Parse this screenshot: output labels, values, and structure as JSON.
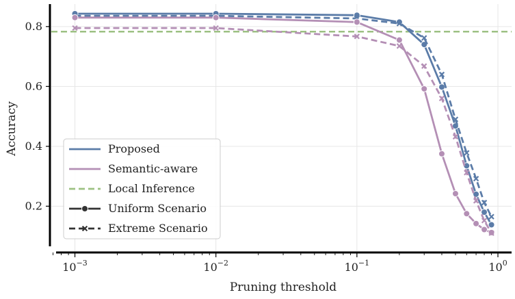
{
  "chart_data": {
    "type": "line",
    "title": "",
    "xlabel": "Pruning threshold",
    "ylabel": "Accuracy",
    "xscale": "log",
    "xlim": [
      0.00068,
      1.25
    ],
    "ylim": [
      0.05,
      0.875
    ],
    "grid": true,
    "legend_position": "lower-left",
    "x_ticks": [
      {
        "value": 0.001,
        "base": "10",
        "exp": "−3"
      },
      {
        "value": 0.01,
        "base": "10",
        "exp": "−2"
      },
      {
        "value": 0.1,
        "base": "10",
        "exp": "−1"
      },
      {
        "value": 1,
        "base": "10",
        "exp": "0"
      }
    ],
    "y_ticks": [
      {
        "value": 0.2,
        "label": "0.2"
      },
      {
        "value": 0.4,
        "label": "0.4"
      },
      {
        "value": 0.6,
        "label": "0.6"
      },
      {
        "value": 0.8,
        "label": "0.8"
      }
    ],
    "series": [
      {
        "name": "Proposed",
        "scenario": "Uniform Scenario",
        "color": "#5b7ca8",
        "dash": "solid",
        "marker": "circle",
        "x": [
          0.001,
          0.01,
          0.1,
          0.2,
          0.3,
          0.4,
          0.5,
          0.6,
          0.7,
          0.8,
          0.9
        ],
        "y": [
          0.843,
          0.843,
          0.838,
          0.815,
          0.74,
          0.598,
          0.468,
          0.335,
          0.24,
          0.18,
          0.138
        ]
      },
      {
        "name": "Proposed",
        "scenario": "Extreme Scenario",
        "color": "#5b7ca8",
        "dash": "dashed",
        "marker": "x",
        "x": [
          0.001,
          0.01,
          0.1,
          0.2,
          0.3,
          0.4,
          0.5,
          0.6,
          0.7,
          0.8,
          0.9
        ],
        "y": [
          0.836,
          0.836,
          0.827,
          0.81,
          0.762,
          0.64,
          0.49,
          0.378,
          0.292,
          0.212,
          0.165
        ]
      },
      {
        "name": "Semantic-aware",
        "scenario": "Uniform Scenario",
        "color": "#b48fb5",
        "dash": "solid",
        "marker": "circle",
        "x": [
          0.001,
          0.01,
          0.1,
          0.2,
          0.3,
          0.4,
          0.5,
          0.6,
          0.7,
          0.8,
          0.9
        ],
        "y": [
          0.83,
          0.83,
          0.815,
          0.755,
          0.592,
          0.375,
          0.242,
          0.175,
          0.142,
          0.122,
          0.112
        ]
      },
      {
        "name": "Semantic-aware",
        "scenario": "Extreme Scenario",
        "color": "#b48fb5",
        "dash": "dashed",
        "marker": "x",
        "x": [
          0.001,
          0.01,
          0.1,
          0.2,
          0.3,
          0.4,
          0.5,
          0.6,
          0.7,
          0.8,
          0.9
        ],
        "y": [
          0.795,
          0.795,
          0.767,
          0.735,
          0.668,
          0.56,
          0.432,
          0.312,
          0.218,
          0.152,
          0.11
        ]
      }
    ],
    "reference_line": {
      "name": "Local Inference",
      "y": 0.783,
      "color": "#9dc183",
      "dash": "dashed"
    },
    "legend": [
      {
        "label": "Proposed",
        "style": "solid-line",
        "color": "#5b7ca8"
      },
      {
        "label": "Semantic-aware",
        "style": "solid-line",
        "color": "#b48fb5"
      },
      {
        "label": "Local Inference",
        "style": "dashed-line",
        "color": "#9dc183"
      },
      {
        "label": "Uniform Scenario",
        "style": "solid-line-circle",
        "color": "#333333"
      },
      {
        "label": "Extreme Scenario",
        "style": "dashed-line-x",
        "color": "#333333"
      }
    ]
  }
}
